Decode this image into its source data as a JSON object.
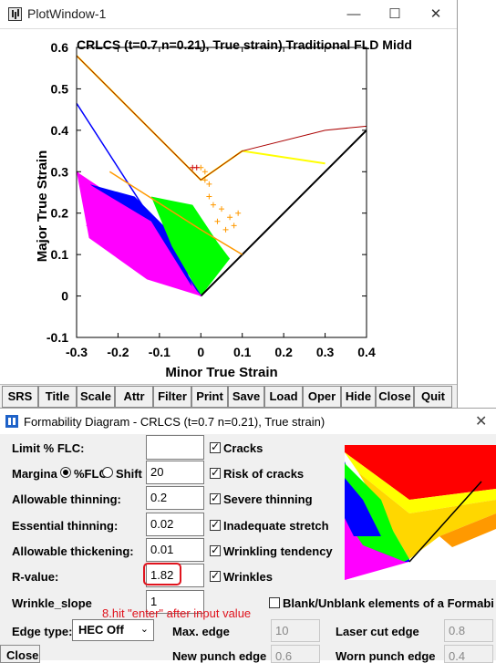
{
  "plot_window": {
    "title": "PlotWindow-1",
    "controls": {
      "minimize": "—",
      "maximize": "☐",
      "close": "✕"
    }
  },
  "chart_data": {
    "type": "scatter",
    "title": "CRLCS (t=0.7 n=0.21), True strain) Traditional FLD Midd",
    "xlabel": "Minor True Strain",
    "ylabel": "Major True Strain",
    "xlim": [
      -0.3,
      0.4
    ],
    "ylim": [
      -0.1,
      0.6
    ],
    "x_ticks": [
      "-0.3",
      "-0.2",
      "-0.1",
      "0",
      "0.1",
      "0.2",
      "0.3",
      "0.4"
    ],
    "y_ticks": [
      "0.6",
      "0.5",
      "0.4",
      "0.3",
      "0.2",
      "0.1",
      "0",
      "-0.1"
    ],
    "grid": false,
    "colors": {
      "flc": "#000000",
      "risk": "#ff9900",
      "severe": "#ffff00",
      "crack": "#aa0000",
      "blue": "#0000ff",
      "green": "#00ff00",
      "magenta": "#ff00ff"
    },
    "series": [
      {
        "values": [
          [
            0.0,
            0.0
          ],
          [
            0.4,
            0.4
          ]
        ]
      },
      {
        "values": [
          [
            -0.3,
            0.465
          ],
          [
            0.0,
            0.0
          ]
        ]
      },
      {
        "values": [
          [
            -0.3,
            0.3
          ],
          [
            0.0,
            0.0
          ]
        ]
      },
      {
        "values": [
          [
            -0.22,
            0.3
          ],
          [
            0.0,
            0.16
          ],
          [
            0.1,
            0.1
          ]
        ]
      },
      {
        "values": [
          [
            -0.3,
            0.58
          ],
          [
            0.0,
            0.28
          ],
          [
            0.1,
            0.35
          ],
          [
            0.3,
            0.32
          ]
        ]
      },
      {
        "values": [
          [
            -0.3,
            0.58
          ],
          [
            0.0,
            0.28
          ],
          [
            0.1,
            0.35
          ],
          [
            0.3,
            0.4
          ],
          [
            0.4,
            0.41
          ]
        ]
      }
    ]
  },
  "toolbar": {
    "buttons": [
      "SRS",
      "Title",
      "Scale",
      "Attr",
      "Filter",
      "Print",
      "Save",
      "Load",
      "Oper",
      "Hide",
      "Close",
      "Quit"
    ]
  },
  "dialog": {
    "title": "Formability Diagram - CRLCS (t=0.7 n=0.21), True strain)",
    "close": "✕",
    "fields": {
      "limit_flc": {
        "label": "Limit % FLC:",
        "value": ""
      },
      "margin": {
        "label": "Margina",
        "radio1": "%FLC",
        "radio2": "Shift",
        "value": "20"
      },
      "allowable_thinning": {
        "label": "Allowable thinning:",
        "value": "0.2"
      },
      "essential_thinning": {
        "label": "Essential thinning:",
        "value": "0.02"
      },
      "allowable_thickening": {
        "label": "Allowable thickening:",
        "value": "0.01"
      },
      "r_value": {
        "label": "R-value:",
        "value": "1.82"
      },
      "wrinkle_slope": {
        "label": "Wrinkle_slope",
        "value": "1"
      }
    },
    "checkboxes": [
      {
        "label": "Cracks",
        "checked": true
      },
      {
        "label": "Risk of cracks",
        "checked": true
      },
      {
        "label": "Severe thinning",
        "checked": true
      },
      {
        "label": "Inadequate stretch",
        "checked": true
      },
      {
        "label": "Wrinkling tendency",
        "checked": true
      },
      {
        "label": "Wrinkles",
        "checked": true
      }
    ],
    "blank_unblank": "Blank/Unblank elements of a Formabi",
    "annotation": "8.hit \"enter\" after input value",
    "edge_type": {
      "label": "Edge type:",
      "value": "HEC Off"
    },
    "max_edge": {
      "label": "Max. edge",
      "value": "10"
    },
    "laser_cut_edge": {
      "label": "Laser cut edge",
      "value": "0.8"
    },
    "new_punch_edge": {
      "label": "New punch edge",
      "value": "0.6"
    },
    "worn_punch_edge": {
      "label": "Worn punch edge",
      "value": "0.4"
    },
    "close_button": "Close"
  }
}
